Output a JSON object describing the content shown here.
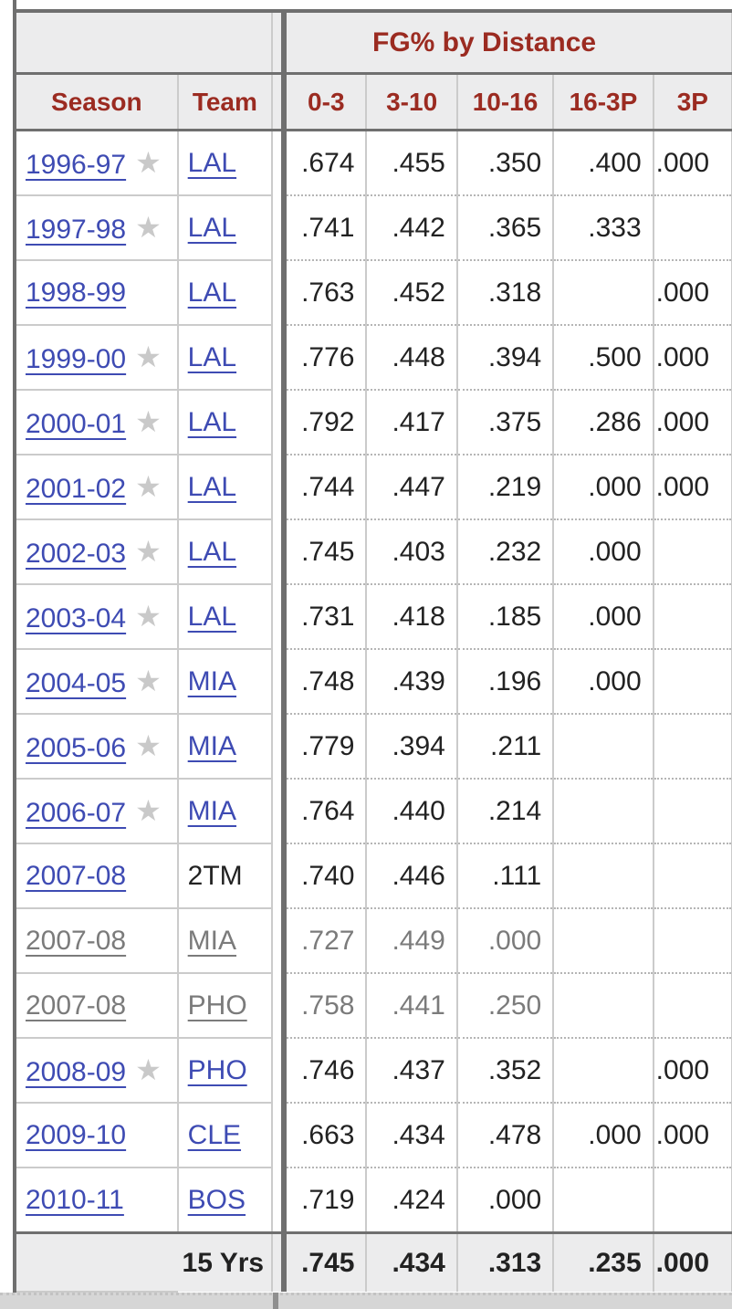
{
  "colors": {
    "header_text": "#9b2b21",
    "link": "#3e4bb3",
    "muted_text": "#7b7b7b",
    "header_bg": "#ececed",
    "dark_border": "#6f6f6f",
    "light_border": "#cbcbcb",
    "star": "#c9c9c9",
    "page_strip": "#d6d6d6"
  },
  "table": {
    "group_header": "FG% by Distance",
    "columns": [
      "Season",
      "Team",
      "0-3",
      "3-10",
      "10-16",
      "16-3P",
      "3P"
    ],
    "star_icon": "★",
    "rows": [
      {
        "season": "1996-97",
        "star": true,
        "team": "LAL",
        "team_is_link": true,
        "muted": false,
        "values": [
          ".674",
          ".455",
          ".350",
          ".400",
          ".000"
        ]
      },
      {
        "season": "1997-98",
        "star": true,
        "team": "LAL",
        "team_is_link": true,
        "muted": false,
        "values": [
          ".741",
          ".442",
          ".365",
          ".333",
          ""
        ]
      },
      {
        "season": "1998-99",
        "star": false,
        "team": "LAL",
        "team_is_link": true,
        "muted": false,
        "values": [
          ".763",
          ".452",
          ".318",
          "",
          ".000"
        ]
      },
      {
        "season": "1999-00",
        "star": true,
        "team": "LAL",
        "team_is_link": true,
        "muted": false,
        "values": [
          ".776",
          ".448",
          ".394",
          ".500",
          ".000"
        ]
      },
      {
        "season": "2000-01",
        "star": true,
        "team": "LAL",
        "team_is_link": true,
        "muted": false,
        "values": [
          ".792",
          ".417",
          ".375",
          ".286",
          ".000"
        ]
      },
      {
        "season": "2001-02",
        "star": true,
        "team": "LAL",
        "team_is_link": true,
        "muted": false,
        "values": [
          ".744",
          ".447",
          ".219",
          ".000",
          ".000"
        ]
      },
      {
        "season": "2002-03",
        "star": true,
        "team": "LAL",
        "team_is_link": true,
        "muted": false,
        "values": [
          ".745",
          ".403",
          ".232",
          ".000",
          ""
        ]
      },
      {
        "season": "2003-04",
        "star": true,
        "team": "LAL",
        "team_is_link": true,
        "muted": false,
        "values": [
          ".731",
          ".418",
          ".185",
          ".000",
          ""
        ]
      },
      {
        "season": "2004-05",
        "star": true,
        "team": "MIA",
        "team_is_link": true,
        "muted": false,
        "values": [
          ".748",
          ".439",
          ".196",
          ".000",
          ""
        ]
      },
      {
        "season": "2005-06",
        "star": true,
        "team": "MIA",
        "team_is_link": true,
        "muted": false,
        "values": [
          ".779",
          ".394",
          ".211",
          "",
          ""
        ]
      },
      {
        "season": "2006-07",
        "star": true,
        "team": "MIA",
        "team_is_link": true,
        "muted": false,
        "values": [
          ".764",
          ".440",
          ".214",
          "",
          ""
        ]
      },
      {
        "season": "2007-08",
        "star": false,
        "team": "2TM",
        "team_is_link": false,
        "muted": false,
        "values": [
          ".740",
          ".446",
          ".111",
          "",
          ""
        ]
      },
      {
        "season": "2007-08",
        "star": false,
        "team": "MIA",
        "team_is_link": true,
        "muted": true,
        "values": [
          ".727",
          ".449",
          ".000",
          "",
          ""
        ]
      },
      {
        "season": "2007-08",
        "star": false,
        "team": "PHO",
        "team_is_link": true,
        "muted": true,
        "values": [
          ".758",
          ".441",
          ".250",
          "",
          ""
        ]
      },
      {
        "season": "2008-09",
        "star": true,
        "team": "PHO",
        "team_is_link": true,
        "muted": false,
        "values": [
          ".746",
          ".437",
          ".352",
          "",
          ".000"
        ]
      },
      {
        "season": "2009-10",
        "star": false,
        "team": "CLE",
        "team_is_link": true,
        "muted": false,
        "values": [
          ".663",
          ".434",
          ".478",
          ".000",
          ".000"
        ]
      },
      {
        "season": "2010-11",
        "star": false,
        "team": "BOS",
        "team_is_link": true,
        "muted": false,
        "values": [
          ".719",
          ".424",
          ".000",
          "",
          ""
        ]
      }
    ],
    "footer": {
      "label": "15 Yrs",
      "values": [
        ".745",
        ".434",
        ".313",
        ".235",
        ".000"
      ]
    }
  }
}
